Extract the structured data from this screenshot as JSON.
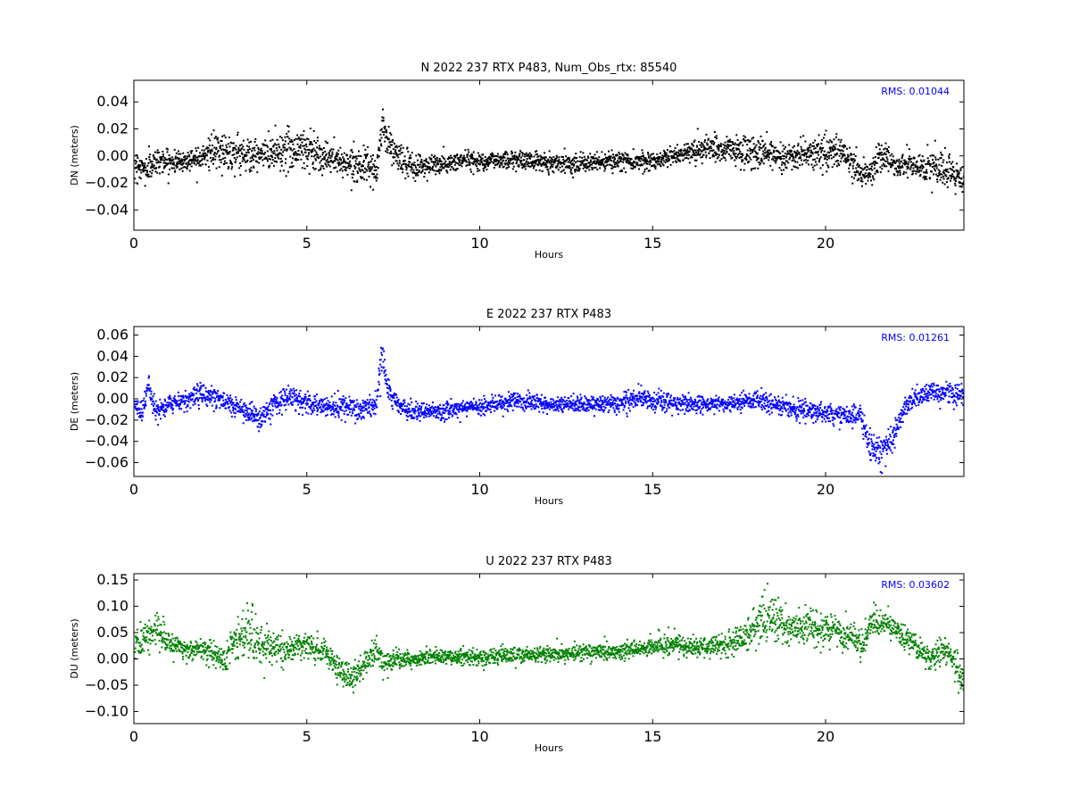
{
  "chart_data": [
    {
      "type": "scatter",
      "title": "N 2022 237 RTX  P483, Num_Obs_rtx: 85540",
      "xlabel": "Hours",
      "ylabel": "DN (meters)",
      "annotation": "RMS:  0.01044",
      "annotation_color": "#0000ff",
      "color": "#000000",
      "xlim": [
        0,
        24
      ],
      "ylim": [
        -0.055,
        0.056
      ],
      "xticks": [
        0,
        5,
        10,
        15,
        20
      ],
      "yticks": [
        -0.04,
        -0.02,
        0.0,
        0.02,
        0.04
      ],
      "xtick_labels": [
        "0",
        "5",
        "10",
        "15",
        "20"
      ],
      "ytick_labels": [
        "−0.04",
        "−0.02",
        "0.00",
        "0.02",
        "0.04"
      ],
      "trend": {
        "x": [
          0,
          0.3,
          0.7,
          1.0,
          1.5,
          2.0,
          2.5,
          3.0,
          3.5,
          4.0,
          4.5,
          5.0,
          5.5,
          6.0,
          6.5,
          7.0,
          7.15,
          7.3,
          7.6,
          8.0,
          8.5,
          9.0,
          9.5,
          10,
          11,
          12,
          13,
          14,
          15,
          15.5,
          16,
          16.5,
          17,
          17.5,
          18,
          18.5,
          19,
          19.5,
          20,
          20.5,
          21,
          21.3,
          21.6,
          22,
          22.5,
          23,
          23.5,
          24
        ],
        "y": [
          -0.004,
          -0.01,
          -0.002,
          -0.004,
          -0.003,
          0.002,
          0.004,
          0.003,
          0.0,
          0.004,
          0.006,
          0.006,
          0.0,
          -0.004,
          -0.005,
          -0.012,
          0.025,
          0.012,
          0.0,
          -0.008,
          -0.006,
          -0.006,
          -0.002,
          -0.003,
          -0.002,
          -0.004,
          -0.005,
          -0.003,
          -0.003,
          0.0,
          0.004,
          0.006,
          0.005,
          0.004,
          0.002,
          0.002,
          0.0,
          0.002,
          0.004,
          0.002,
          -0.012,
          -0.012,
          0.002,
          -0.006,
          -0.006,
          -0.008,
          -0.012,
          -0.02
        ],
        "spread": [
          0.008,
          0.01,
          0.008,
          0.007,
          0.007,
          0.009,
          0.012,
          0.013,
          0.01,
          0.012,
          0.015,
          0.016,
          0.01,
          0.009,
          0.01,
          0.008,
          0.015,
          0.012,
          0.01,
          0.009,
          0.008,
          0.007,
          0.006,
          0.006,
          0.006,
          0.006,
          0.006,
          0.006,
          0.006,
          0.006,
          0.007,
          0.008,
          0.009,
          0.012,
          0.011,
          0.01,
          0.009,
          0.009,
          0.011,
          0.01,
          0.01,
          0.01,
          0.01,
          0.009,
          0.008,
          0.01,
          0.012,
          0.01
        ]
      }
    },
    {
      "type": "scatter",
      "title": "E 2022 237 RTX  P483",
      "xlabel": "Hours",
      "ylabel": "DE (meters)",
      "annotation": "RMS:  0.01261",
      "annotation_color": "#0000ff",
      "color": "#0000ff",
      "xlim": [
        0,
        24
      ],
      "ylim": [
        -0.073,
        0.068
      ],
      "xticks": [
        0,
        5,
        10,
        15,
        20
      ],
      "yticks": [
        -0.06,
        -0.04,
        -0.02,
        0.0,
        0.02,
        0.04,
        0.06
      ],
      "xtick_labels": [
        "0",
        "5",
        "10",
        "15",
        "20"
      ],
      "ytick_labels": [
        "−0.06",
        "−0.04",
        "−0.02",
        "0.00",
        "0.02",
        "0.04",
        "0.06"
      ],
      "trend": {
        "x": [
          0,
          0.2,
          0.4,
          0.6,
          1.0,
          1.5,
          2.0,
          2.5,
          3.0,
          3.5,
          3.7,
          4.0,
          4.5,
          5.0,
          5.5,
          6.0,
          6.5,
          7.0,
          7.15,
          7.3,
          7.6,
          8.0,
          8.5,
          9.0,
          10,
          11,
          12,
          13,
          14,
          14.5,
          15,
          16,
          17,
          18,
          19,
          20,
          20.5,
          21,
          21.2,
          21.5,
          21.8,
          22,
          22.3,
          22.6,
          23,
          23.5,
          24
        ],
        "y": [
          -0.004,
          -0.012,
          0.014,
          -0.012,
          -0.004,
          0.0,
          0.006,
          0.0,
          -0.008,
          -0.016,
          -0.018,
          -0.004,
          0.002,
          -0.004,
          -0.006,
          -0.008,
          -0.01,
          -0.004,
          0.045,
          0.01,
          -0.006,
          -0.01,
          -0.012,
          -0.01,
          -0.006,
          0.0,
          -0.006,
          -0.004,
          -0.004,
          0.002,
          -0.002,
          -0.004,
          -0.004,
          0.0,
          -0.008,
          -0.012,
          -0.016,
          -0.014,
          -0.04,
          -0.05,
          -0.04,
          -0.03,
          -0.004,
          0.002,
          0.006,
          0.008,
          0.004
        ],
        "spread": [
          0.007,
          0.008,
          0.01,
          0.008,
          0.007,
          0.008,
          0.01,
          0.008,
          0.009,
          0.01,
          0.01,
          0.009,
          0.009,
          0.009,
          0.009,
          0.01,
          0.01,
          0.01,
          0.016,
          0.01,
          0.008,
          0.007,
          0.007,
          0.007,
          0.007,
          0.008,
          0.007,
          0.007,
          0.007,
          0.01,
          0.008,
          0.007,
          0.007,
          0.008,
          0.008,
          0.008,
          0.008,
          0.008,
          0.012,
          0.014,
          0.012,
          0.01,
          0.008,
          0.008,
          0.008,
          0.01,
          0.009
        ]
      }
    },
    {
      "type": "scatter",
      "title": "U 2022 237 RTX  P483",
      "xlabel": "Hours",
      "ylabel": "DU (meters)",
      "annotation": "RMS:  0.03602",
      "annotation_color": "#0000ff",
      "color": "#008000",
      "xlim": [
        0,
        24
      ],
      "ylim": [
        -0.123,
        0.162
      ],
      "xticks": [
        0,
        5,
        10,
        15,
        20
      ],
      "yticks": [
        -0.1,
        -0.05,
        0.0,
        0.05,
        0.1,
        0.15
      ],
      "xtick_labels": [
        "0",
        "5",
        "10",
        "15",
        "20"
      ],
      "ytick_labels": [
        "−0.10",
        "−0.05",
        "0.00",
        "0.05",
        "0.10",
        "0.15"
      ],
      "trend": {
        "x": [
          0,
          0.3,
          0.6,
          1.0,
          1.5,
          2.0,
          2.3,
          2.6,
          3.0,
          3.3,
          3.6,
          4.0,
          4.5,
          5.0,
          5.5,
          6.0,
          6.3,
          6.6,
          7.0,
          7.2,
          7.5,
          8.0,
          8.5,
          9.0,
          10,
          11,
          12,
          13,
          14,
          15,
          15.5,
          16,
          17,
          17.5,
          18,
          18.3,
          18.6,
          19,
          19.5,
          20,
          20.5,
          21,
          21.3,
          21.6,
          22,
          22.5,
          23,
          23.5,
          24
        ],
        "y": [
          0.03,
          0.045,
          0.06,
          0.03,
          0.02,
          0.02,
          0.01,
          0.0,
          0.05,
          0.05,
          0.03,
          0.02,
          0.02,
          0.03,
          0.01,
          -0.02,
          -0.04,
          -0.01,
          0.02,
          -0.01,
          0.0,
          0.0,
          0.005,
          0.005,
          0.005,
          0.01,
          0.01,
          0.015,
          0.015,
          0.025,
          0.03,
          0.025,
          0.025,
          0.04,
          0.06,
          0.08,
          0.07,
          0.06,
          0.06,
          0.06,
          0.05,
          0.03,
          0.07,
          0.07,
          0.06,
          0.03,
          0.005,
          0.02,
          -0.04
        ],
        "spread": [
          0.022,
          0.028,
          0.03,
          0.022,
          0.018,
          0.018,
          0.02,
          0.025,
          0.045,
          0.045,
          0.035,
          0.025,
          0.022,
          0.024,
          0.02,
          0.024,
          0.028,
          0.026,
          0.02,
          0.02,
          0.016,
          0.014,
          0.014,
          0.014,
          0.014,
          0.014,
          0.014,
          0.014,
          0.014,
          0.016,
          0.018,
          0.016,
          0.016,
          0.022,
          0.035,
          0.04,
          0.035,
          0.03,
          0.028,
          0.028,
          0.025,
          0.025,
          0.025,
          0.025,
          0.022,
          0.02,
          0.022,
          0.028,
          0.025
        ]
      }
    }
  ]
}
